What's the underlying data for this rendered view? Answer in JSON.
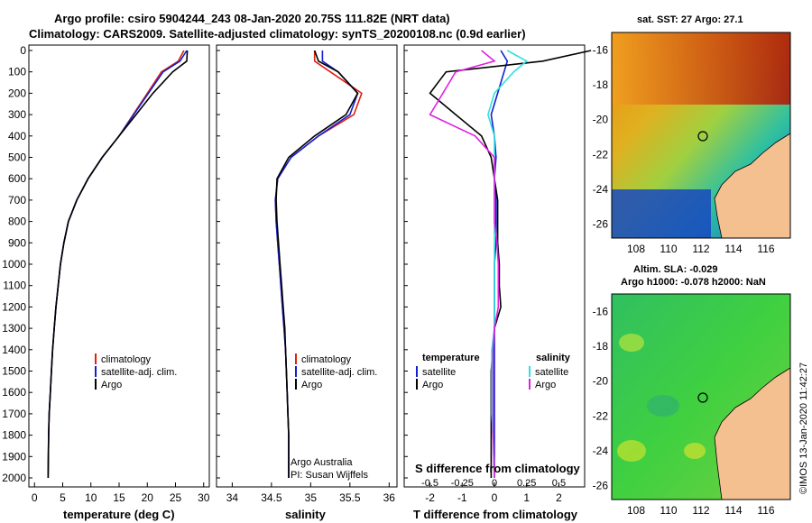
{
  "title": {
    "line1": "Argo profile: csiro 5904244_243 08-Jan-2020 20.75S 111.82E (NRT data)",
    "line2": "Climatology: CARS2009. Satellite-adjusted climatology: synTS_20200108.nc (0.9d earlier)"
  },
  "credit": "©IMOS 13-Jan-2020 11:42:27",
  "depth_ticks": [
    "0",
    "100",
    "200",
    "300",
    "400",
    "500",
    "600",
    "700",
    "800",
    "900",
    "1000",
    "1100",
    "1200",
    "1300",
    "1400",
    "1500",
    "1600",
    "1700",
    "1800",
    "1900",
    "2000"
  ],
  "colors": {
    "climatology": "#e02010",
    "satellite": "#1020d0",
    "argo": "#000000",
    "sat_salinity": "#30e0e0",
    "argo_salinity": "#e020e0"
  },
  "temp_panel": {
    "xlabel": "temperature (deg C)",
    "xticks": [
      "0",
      "5",
      "10",
      "15",
      "20",
      "25",
      "30"
    ],
    "legend": [
      "climatology",
      "satellite-adj. clim.",
      "Argo"
    ]
  },
  "sal_panel": {
    "xlabel": "salinity",
    "xticks": [
      "34",
      "34.5",
      "35",
      "35.5",
      "36"
    ],
    "legend": [
      "climatology",
      "satellite-adj. clim.",
      "Argo"
    ],
    "note1": "Argo Australia",
    "note2": "PI: Susan Wijffels"
  },
  "diff_panel": {
    "xlabel": "T difference from climatology",
    "xticks": [
      "-2",
      "-1",
      "0",
      "1",
      "2"
    ],
    "top_label": "S difference from climatology",
    "top_ticks": [
      "-0.5",
      "-0.25",
      "0",
      "0.25",
      "0.5"
    ],
    "legend_t_title": "temperature",
    "legend_t": [
      "satellite",
      "Argo"
    ],
    "legend_s_title": "salinity",
    "legend_s": [
      "satellite",
      "Argo"
    ]
  },
  "map_sst": {
    "title": "sat. SST: 27 Argo: 27.1",
    "yticks": [
      "-16",
      "-18",
      "-20",
      "-22",
      "-24",
      "-26"
    ],
    "xticks": [
      "108",
      "110",
      "112",
      "114",
      "116"
    ]
  },
  "map_sla": {
    "title1": "Altim. SLA: -0.029",
    "title2": "Argo h1000: -0.078 h2000: NaN",
    "yticks": [
      "-16",
      "-18",
      "-20",
      "-22",
      "-24",
      "-26"
    ],
    "xticks": [
      "108",
      "110",
      "112",
      "114",
      "116"
    ]
  },
  "chart_data": [
    {
      "type": "line",
      "xlabel": "temperature (deg C)",
      "ylabel": "",
      "xlim": [
        -1,
        31
      ],
      "ylim": [
        2050,
        0
      ],
      "series": [
        {
          "name": "climatology",
          "x": [
            26.5,
            25.5,
            22.5,
            20.0,
            17.5,
            15.0,
            12.0,
            9.5,
            7.5,
            6.0,
            5.2,
            4.6,
            4.2,
            3.8,
            3.5,
            3.2,
            3.0,
            2.8,
            2.6,
            2.5,
            2.4
          ],
          "y": [
            0,
            50,
            100,
            200,
            300,
            400,
            500,
            600,
            700,
            800,
            900,
            1000,
            1100,
            1200,
            1300,
            1400,
            1500,
            1600,
            1700,
            1800,
            2000
          ]
        },
        {
          "name": "satellite-adj. clim.",
          "x": [
            27.0,
            25.8,
            22.8,
            20.2,
            17.6,
            15.0,
            12.0,
            9.5,
            7.5,
            6.0,
            5.2,
            4.6,
            4.2,
            3.8,
            3.5,
            3.2,
            3.0,
            2.8,
            2.6,
            2.5,
            2.4
          ],
          "y": [
            0,
            50,
            100,
            200,
            300,
            400,
            500,
            600,
            700,
            800,
            900,
            1000,
            1100,
            1200,
            1300,
            1400,
            1500,
            1600,
            1700,
            1800,
            2000
          ]
        },
        {
          "name": "Argo",
          "x": [
            27.1,
            27.0,
            24.5,
            21.0,
            18.0,
            15.0,
            12.0,
            9.5,
            7.5,
            6.0,
            5.2,
            4.6,
            4.2,
            3.8,
            3.5,
            3.2,
            3.0,
            2.8,
            2.6,
            2.5,
            2.4
          ],
          "y": [
            0,
            50,
            100,
            200,
            300,
            400,
            500,
            600,
            700,
            800,
            900,
            1000,
            1100,
            1200,
            1300,
            1400,
            1500,
            1600,
            1700,
            1800,
            2000
          ]
        }
      ]
    },
    {
      "type": "line",
      "xlabel": "salinity",
      "ylabel": "",
      "xlim": [
        33.8,
        36.1
      ],
      "ylim": [
        2050,
        0
      ],
      "series": [
        {
          "name": "climatology",
          "x": [
            35.05,
            35.05,
            35.25,
            35.65,
            35.55,
            35.1,
            34.75,
            34.58,
            34.55,
            34.56,
            34.58,
            34.6,
            34.62,
            34.64,
            34.66,
            34.68,
            34.69,
            34.7,
            34.71,
            34.72,
            34.72
          ],
          "y": [
            0,
            50,
            100,
            200,
            300,
            400,
            500,
            600,
            700,
            800,
            900,
            1000,
            1100,
            1200,
            1300,
            1400,
            1500,
            1600,
            1700,
            1800,
            2000
          ]
        },
        {
          "name": "satellite-adj. clim.",
          "x": [
            35.15,
            35.15,
            35.35,
            35.6,
            35.5,
            35.1,
            34.75,
            34.58,
            34.55,
            34.56,
            34.58,
            34.6,
            34.62,
            34.64,
            34.66,
            34.68,
            34.69,
            34.7,
            34.71,
            34.72,
            34.72
          ],
          "y": [
            0,
            50,
            100,
            200,
            300,
            400,
            500,
            600,
            700,
            800,
            900,
            1000,
            1100,
            1200,
            1300,
            1400,
            1500,
            1600,
            1700,
            1800,
            2000
          ]
        },
        {
          "name": "Argo",
          "x": [
            35.05,
            35.1,
            35.35,
            35.6,
            35.45,
            35.05,
            34.72,
            34.57,
            34.56,
            34.57,
            34.59,
            34.61,
            34.63,
            34.65,
            34.67,
            34.68,
            34.69,
            34.7,
            34.71,
            34.72,
            34.72
          ],
          "y": [
            0,
            50,
            100,
            200,
            300,
            400,
            500,
            600,
            700,
            800,
            900,
            1000,
            1100,
            1200,
            1300,
            1400,
            1500,
            1600,
            1700,
            1800,
            2000
          ]
        }
      ]
    },
    {
      "type": "line",
      "xlabel": "T difference from climatology",
      "ylabel": "",
      "xlim": [
        -2.8,
        2.8
      ],
      "ylim": [
        2050,
        0
      ],
      "series": [
        {
          "name": "satellite",
          "x": [
            0.2,
            0.4,
            0.3,
            0.1,
            -0.1,
            0.0,
            0.05,
            0.0,
            0.05,
            0.05,
            0.05,
            0.0,
            0.0,
            0.0,
            0.0,
            0.0,
            0.0,
            0.0,
            0.0,
            0.0,
            0.0
          ],
          "y": [
            0,
            50,
            100,
            200,
            300,
            400,
            500,
            600,
            700,
            800,
            900,
            1000,
            1100,
            1200,
            1300,
            1400,
            1500,
            1600,
            1700,
            1800,
            2000
          ]
        },
        {
          "name": "Argo",
          "x": [
            3.0,
            1.5,
            -1.5,
            -2.0,
            -1.2,
            -0.4,
            -0.1,
            0.0,
            0.1,
            0.1,
            0.1,
            0.15,
            0.15,
            0.2,
            0.0,
            -0.05,
            -0.1,
            -0.1,
            -0.1,
            -0.1,
            -0.1
          ],
          "y": [
            0,
            50,
            100,
            200,
            300,
            400,
            500,
            600,
            700,
            800,
            900,
            1000,
            1100,
            1200,
            1300,
            1400,
            1500,
            1600,
            1700,
            1800,
            2000
          ]
        }
      ]
    },
    {
      "type": "line",
      "xlabel": "S difference from climatology",
      "ylabel": "",
      "xlim": [
        -0.7,
        0.7
      ],
      "ylim": [
        2050,
        0
      ],
      "series": [
        {
          "name": "satellite",
          "x": [
            0.1,
            0.25,
            0.15,
            0.0,
            -0.05,
            0.0,
            0.0,
            0.0,
            0.0,
            0.0,
            0.0,
            0.0,
            0.0,
            0.0,
            0.0,
            -0.02,
            -0.02,
            -0.02,
            -0.02,
            -0.01,
            0.0
          ],
          "y": [
            0,
            50,
            100,
            200,
            300,
            400,
            500,
            600,
            700,
            800,
            900,
            1000,
            1100,
            1200,
            1300,
            1400,
            1500,
            1600,
            1700,
            1800,
            2000
          ]
        },
        {
          "name": "Argo",
          "x": [
            -0.1,
            0.0,
            -0.3,
            -0.4,
            -0.5,
            -0.15,
            0.0,
            0.0,
            0.0,
            0.0,
            0.02,
            0.03,
            0.03,
            0.03,
            0.0,
            -0.01,
            -0.01,
            -0.01,
            -0.01,
            -0.01,
            0.0
          ],
          "y": [
            0,
            50,
            100,
            200,
            300,
            400,
            500,
            600,
            700,
            800,
            900,
            1000,
            1100,
            1200,
            1300,
            1400,
            1500,
            1600,
            1700,
            1800,
            2000
          ]
        }
      ]
    }
  ]
}
